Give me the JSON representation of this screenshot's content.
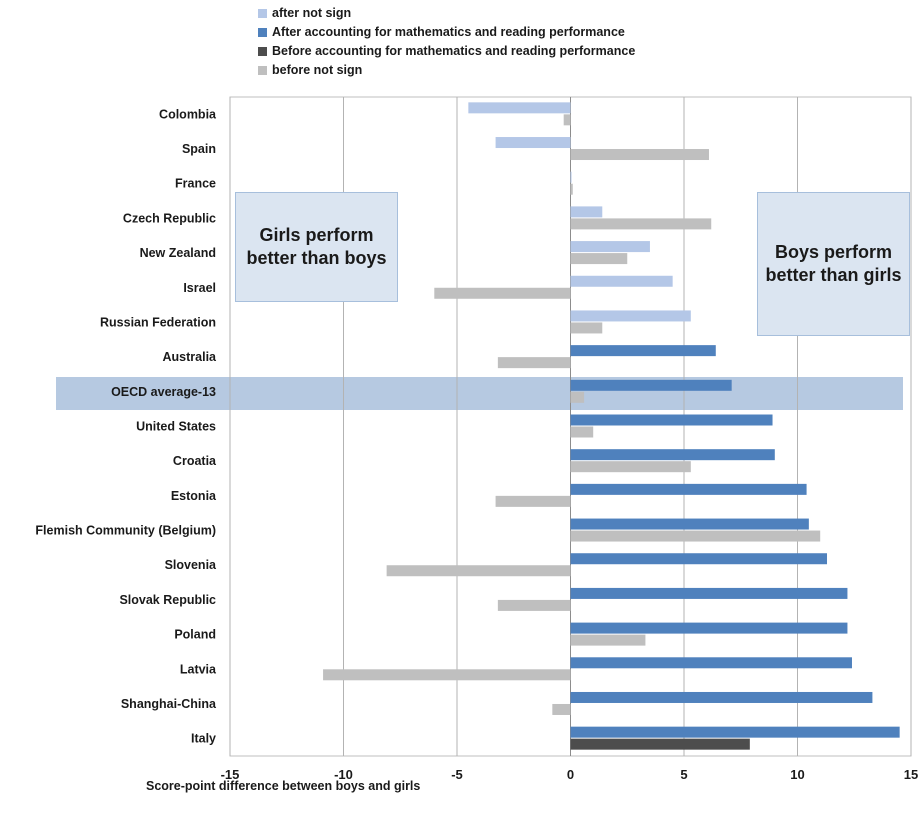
{
  "chart_data": {
    "type": "bar",
    "orientation": "horizontal",
    "xlabel": "Score-point difference between boys  and girls",
    "xlim": [
      -15,
      15
    ],
    "xticks": [
      -15,
      -10,
      -5,
      0,
      5,
      10,
      15
    ],
    "grid": true,
    "legend_position": "top",
    "highlighted_category": "OECD average-13",
    "categories": [
      "Colombia",
      "Spain",
      "France",
      "Czech Republic",
      "New Zealand",
      "Israel",
      "Russian Federation",
      "Australia",
      "OECD average-13",
      "United States",
      "Croatia",
      "Estonia",
      "Flemish Community (Belgium)",
      "Slovenia",
      "Slovak Republic",
      "Poland",
      "Latvia",
      "Shanghai-China",
      "Italy"
    ],
    "after_values": [
      -4.5,
      -3.3,
      0.0,
      1.4,
      3.5,
      4.5,
      5.3,
      6.4,
      7.1,
      8.9,
      9.0,
      10.4,
      10.5,
      11.3,
      12.2,
      12.2,
      12.4,
      13.3,
      14.5
    ],
    "after_significant": [
      false,
      false,
      false,
      false,
      false,
      false,
      false,
      true,
      true,
      true,
      true,
      true,
      true,
      true,
      true,
      true,
      true,
      true,
      true
    ],
    "before_values": [
      -0.3,
      6.1,
      0.1,
      6.2,
      2.5,
      -6.0,
      1.4,
      -3.2,
      0.6,
      1.0,
      5.3,
      -3.3,
      11.0,
      -8.1,
      -3.2,
      3.3,
      -10.9,
      -0.8,
      7.9
    ],
    "before_significant": [
      false,
      false,
      false,
      false,
      false,
      false,
      false,
      false,
      false,
      false,
      false,
      false,
      false,
      false,
      false,
      false,
      false,
      false,
      true
    ],
    "series": [
      {
        "name": "after not sign",
        "color": "#b4c7e7"
      },
      {
        "name": "After accounting for mathematics and reading performance",
        "color": "#4f81bd"
      },
      {
        "name": "Before accounting for mathematics and reading performance",
        "color": "#4d4d4d"
      },
      {
        "name": "before not sign",
        "color": "#bfbfbf"
      }
    ],
    "annotations": {
      "left": "Girls perform better than boys",
      "right": "Boys perform better than girls"
    }
  }
}
